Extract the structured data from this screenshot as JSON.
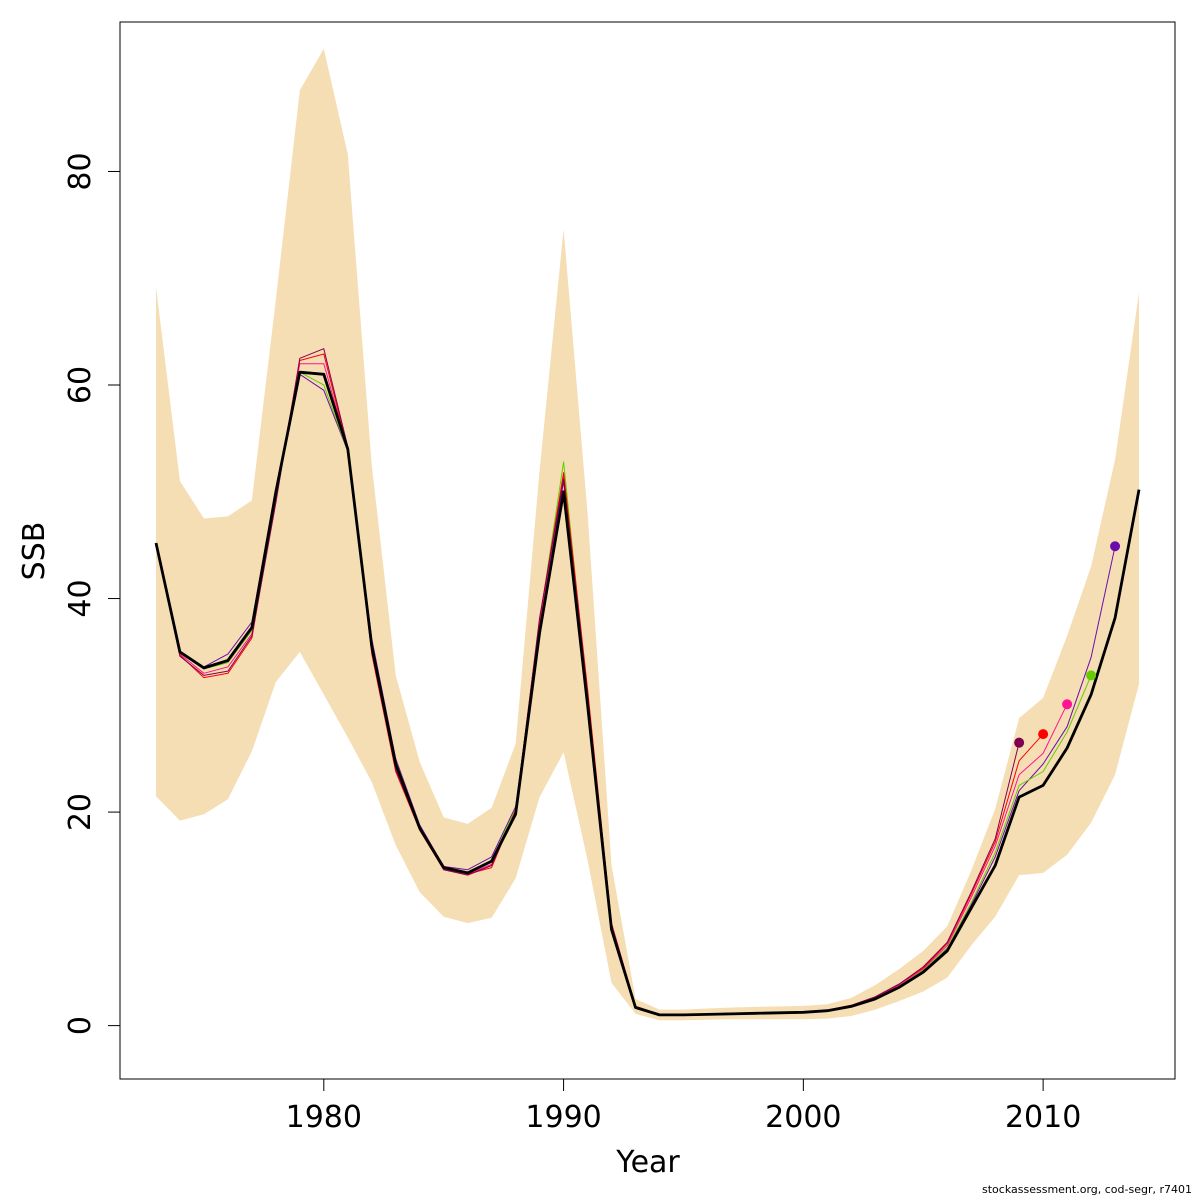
{
  "chart_data": {
    "type": "line",
    "title": "",
    "xlabel": "Year",
    "ylabel": "SSB",
    "xlim": [
      1971.5,
      2015.5
    ],
    "ylim": [
      -5,
      94
    ],
    "x_ticks": [
      1980,
      1990,
      2000,
      2010
    ],
    "y_ticks": [
      0,
      20,
      40,
      60,
      80
    ],
    "grid": false,
    "legend": "none",
    "colors": {
      "band": "#f5deb3",
      "main": "#000000",
      "retro": [
        "#800050",
        "#ff0000",
        "#ff1493",
        "#66cc00",
        "#6a0dad"
      ]
    },
    "confidence_band": {
      "x": [
        1973,
        1974,
        1975,
        1976,
        1977,
        1978,
        1979,
        1980,
        1981,
        1982,
        1983,
        1984,
        1985,
        1986,
        1987,
        1988,
        1989,
        1990,
        1991,
        1992,
        1993,
        1994,
        1995,
        1996,
        1997,
        1998,
        1999,
        2000,
        2001,
        2002,
        2003,
        2004,
        2005,
        2006,
        2007,
        2008,
        2009,
        2010,
        2011,
        2012,
        2013,
        2014
      ],
      "lower": [
        21.5,
        19.2,
        19.8,
        21.2,
        25.7,
        32.2,
        35.0,
        31.0,
        27.0,
        22.8,
        16.9,
        12.5,
        10.2,
        9.6,
        10.1,
        13.8,
        21.4,
        25.6,
        15.5,
        4.0,
        1.1,
        0.5,
        0.5,
        0.55,
        0.6,
        0.6,
        0.6,
        0.6,
        0.65,
        0.9,
        1.5,
        2.3,
        3.2,
        4.5,
        7.5,
        10.2,
        14.1,
        14.3,
        16.0,
        19.0,
        23.5,
        32.0
      ],
      "upper": [
        69.2,
        51.0,
        47.5,
        47.7,
        49.2,
        68.0,
        87.6,
        91.5,
        81.6,
        52.5,
        32.8,
        24.7,
        19.5,
        18.9,
        20.4,
        26.4,
        52.0,
        74.6,
        48.0,
        15.0,
        2.5,
        1.5,
        1.5,
        1.6,
        1.7,
        1.75,
        1.8,
        1.85,
        2.0,
        2.6,
        3.8,
        5.3,
        7.0,
        9.3,
        14.5,
        20.3,
        28.8,
        30.7,
        36.5,
        43.0,
        53.0,
        68.7
      ]
    },
    "series": [
      {
        "x": [
          1973,
          1974,
          1975,
          1976,
          1977,
          1978,
          1979,
          1980,
          1981,
          1982,
          1983,
          1984,
          1985,
          1986,
          1987,
          1988,
          1989,
          1990,
          1991,
          1992,
          1993,
          1994,
          1995,
          1996,
          1997,
          1998,
          1999,
          2000,
          2001,
          2002,
          2003,
          2004,
          2005,
          2006,
          2007,
          2008,
          2009,
          2010,
          2011,
          2012,
          2013,
          2014
        ],
        "values": [
          45.2,
          35.0,
          33.5,
          34.2,
          37.3,
          50.0,
          61.2,
          61.0,
          54.0,
          35.5,
          24.5,
          18.5,
          14.8,
          14.3,
          15.4,
          19.8,
          36.8,
          50.0,
          30.0,
          9.0,
          1.7,
          1.0,
          1.0,
          1.05,
          1.1,
          1.15,
          1.2,
          1.25,
          1.4,
          1.8,
          2.5,
          3.6,
          5.0,
          7.0,
          11.0,
          15.0,
          21.4,
          22.5,
          26.0,
          31.0,
          38.2,
          50.2
        ]
      },
      {
        "x": [
          1973,
          1974,
          1975,
          1976,
          1977,
          1978,
          1979,
          1980,
          1981,
          1982,
          1983,
          1984,
          1985,
          1986,
          1987,
          1988,
          1989,
          1990,
          1991,
          1992,
          1993,
          1994,
          1995,
          1996,
          1997,
          1998,
          1999,
          2000,
          2001,
          2002,
          2003,
          2004,
          2005,
          2006,
          2007,
          2008,
          2009
        ],
        "values": [
          45.1,
          34.6,
          32.8,
          33.2,
          36.5,
          49.0,
          62.5,
          63.4,
          54.2,
          35.0,
          24.0,
          18.4,
          14.6,
          14.1,
          15.0,
          20.0,
          38.2,
          51.2,
          31.0,
          9.5,
          1.8,
          1.05,
          1.05,
          1.1,
          1.15,
          1.2,
          1.25,
          1.3,
          1.45,
          1.9,
          2.7,
          3.9,
          5.5,
          7.8,
          12.5,
          17.5,
          26.5
        ]
      },
      {
        "x": [
          1973,
          1974,
          1975,
          1976,
          1977,
          1978,
          1979,
          1980,
          1981,
          1982,
          1983,
          1984,
          1985,
          1986,
          1987,
          1988,
          1989,
          1990,
          1991,
          1992,
          1993,
          1994,
          1995,
          1996,
          1997,
          1998,
          1999,
          2000,
          2001,
          2002,
          2003,
          2004,
          2005,
          2006,
          2007,
          2008,
          2009,
          2010
        ],
        "values": [
          45.1,
          34.7,
          32.6,
          33.0,
          36.3,
          49.5,
          62.3,
          62.9,
          54.0,
          34.8,
          23.8,
          18.3,
          14.6,
          14.2,
          14.8,
          20.2,
          38.0,
          51.8,
          31.5,
          9.6,
          1.8,
          1.05,
          1.05,
          1.1,
          1.15,
          1.2,
          1.25,
          1.3,
          1.45,
          1.9,
          2.7,
          3.9,
          5.4,
          7.7,
          12.3,
          17.2,
          24.8,
          27.3
        ]
      },
      {
        "x": [
          1973,
          1974,
          1975,
          1976,
          1977,
          1978,
          1979,
          1980,
          1981,
          1982,
          1983,
          1984,
          1985,
          1986,
          1987,
          1988,
          1989,
          1990,
          1991,
          1992,
          1993,
          1994,
          1995,
          1996,
          1997,
          1998,
          1999,
          2000,
          2001,
          2002,
          2003,
          2004,
          2005,
          2006,
          2007,
          2008,
          2009,
          2010,
          2011
        ],
        "values": [
          45.1,
          34.8,
          33.0,
          33.6,
          36.7,
          50.0,
          62.0,
          62.0,
          54.0,
          35.2,
          24.2,
          18.5,
          14.7,
          14.2,
          15.1,
          20.1,
          37.5,
          51.5,
          30.5,
          9.3,
          1.75,
          1.0,
          1.0,
          1.05,
          1.1,
          1.15,
          1.2,
          1.25,
          1.4,
          1.85,
          2.6,
          3.8,
          5.3,
          7.5,
          12.0,
          16.8,
          23.5,
          25.5,
          30.1
        ]
      },
      {
        "x": [
          1973,
          1974,
          1975,
          1976,
          1977,
          1978,
          1979,
          1980,
          1981,
          1982,
          1983,
          1984,
          1985,
          1986,
          1987,
          1988,
          1989,
          1990,
          1991,
          1992,
          1993,
          1994,
          1995,
          1996,
          1997,
          1998,
          1999,
          2000,
          2001,
          2002,
          2003,
          2004,
          2005,
          2006,
          2007,
          2008,
          2009,
          2010,
          2011,
          2012
        ],
        "values": [
          45.1,
          34.9,
          33.4,
          34.0,
          37.0,
          50.2,
          61.2,
          60.0,
          53.8,
          35.8,
          24.8,
          18.6,
          14.8,
          14.3,
          15.5,
          20.3,
          37.8,
          52.8,
          30.8,
          9.4,
          1.75,
          1.0,
          1.0,
          1.05,
          1.1,
          1.15,
          1.2,
          1.25,
          1.4,
          1.85,
          2.6,
          3.7,
          5.2,
          7.3,
          11.5,
          16.2,
          22.5,
          23.8,
          27.5,
          32.8
        ]
      },
      {
        "x": [
          1973,
          1974,
          1975,
          1976,
          1977,
          1978,
          1979,
          1980,
          1981,
          1982,
          1983,
          1984,
          1985,
          1986,
          1987,
          1988,
          1989,
          1990,
          1991,
          1992,
          1993,
          1994,
          1995,
          1996,
          1997,
          1998,
          1999,
          2000,
          2001,
          2002,
          2003,
          2004,
          2005,
          2006,
          2007,
          2008,
          2009,
          2010,
          2011,
          2012,
          2013
        ],
        "values": [
          45.1,
          35.0,
          33.6,
          34.8,
          37.8,
          50.3,
          61.0,
          59.5,
          53.8,
          36.2,
          25.0,
          18.8,
          14.9,
          14.6,
          15.8,
          20.5,
          37.2,
          51.0,
          30.2,
          9.2,
          1.7,
          1.0,
          1.0,
          1.05,
          1.1,
          1.15,
          1.2,
          1.25,
          1.4,
          1.8,
          2.55,
          3.7,
          5.1,
          7.2,
          11.3,
          15.8,
          22.0,
          24.5,
          28.0,
          34.5,
          44.9
        ]
      }
    ]
  },
  "footer": "stockassessment.org, cod-segr, r7401"
}
